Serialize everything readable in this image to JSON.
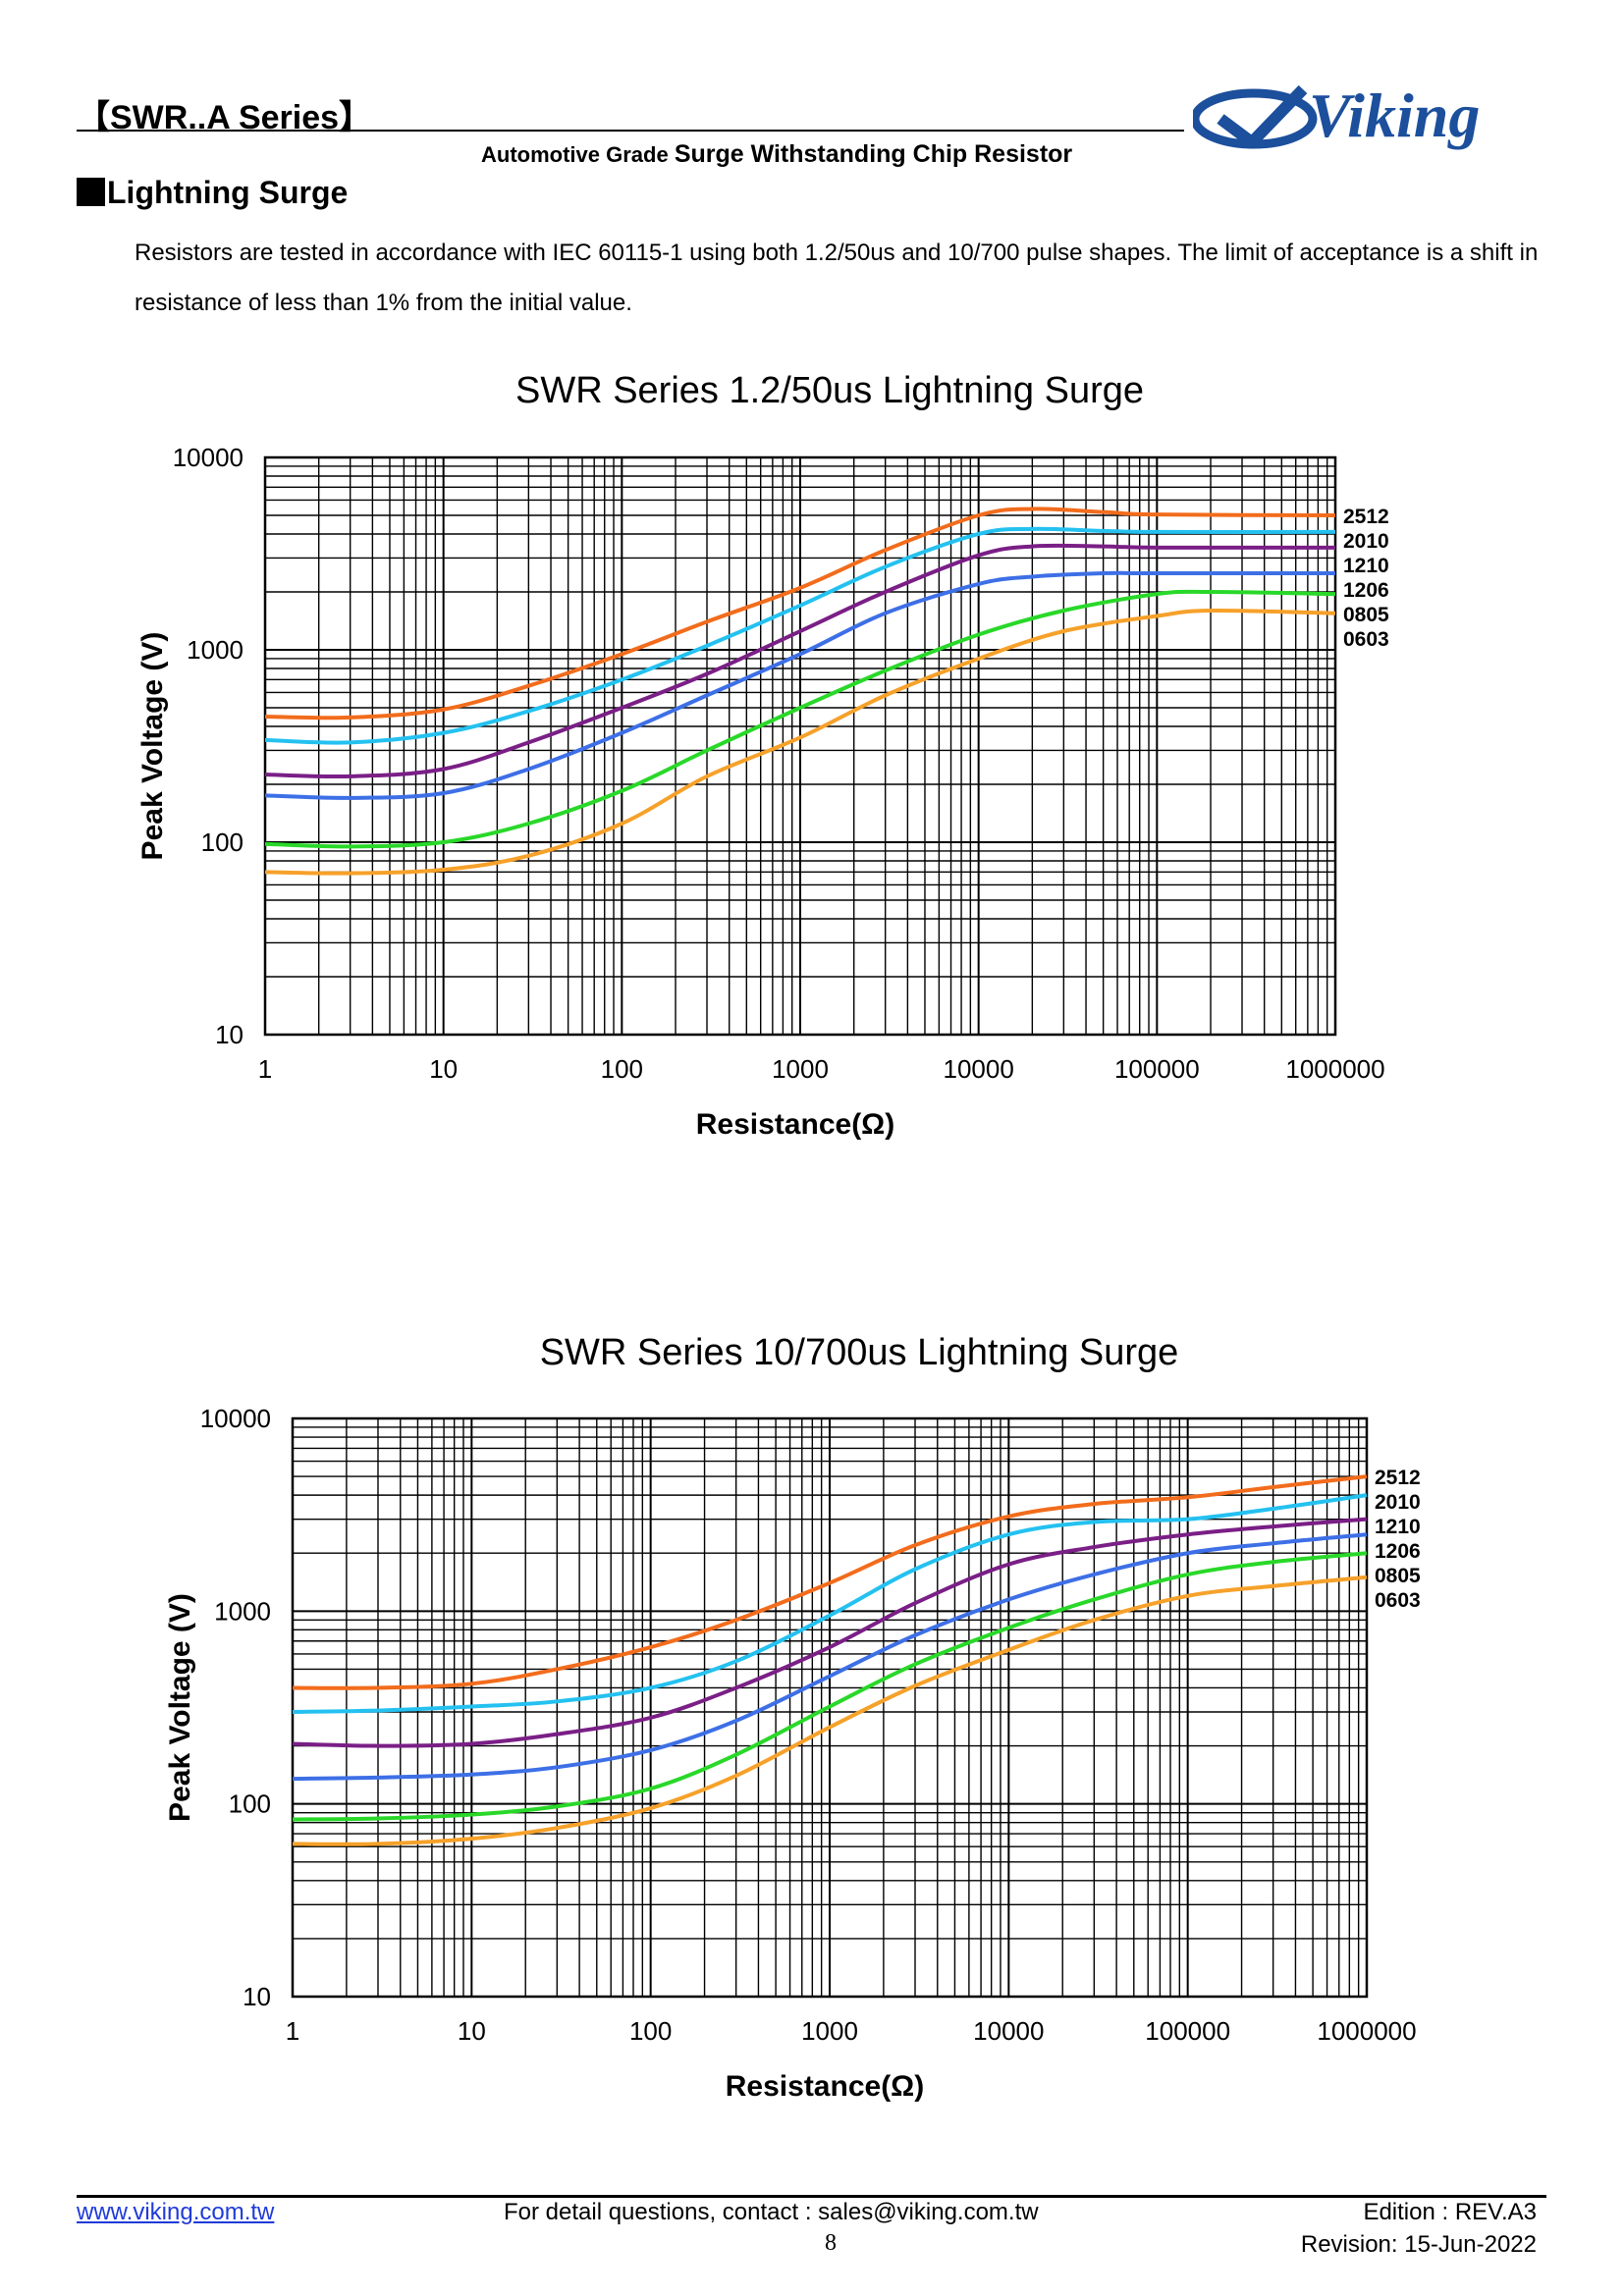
{
  "header": {
    "title": "【SWR..A Series】",
    "subtitle_small": "Automotive Grade ",
    "subtitle_large": "Surge Withstanding Chip Resistor",
    "brand": "Viking"
  },
  "section": {
    "title": "Lightning Surge",
    "paragraph": "Resistors are tested in accordance with IEC 60115-1 using both 1.2/50us and 10/700 pulse shapes. The limit of acceptance is a shift in resistance of less than 1% from the initial value."
  },
  "colors": {
    "2512": "#f26c1c",
    "2010": "#24c1f0",
    "1210": "#7a1f86",
    "1206": "#3d6fe6",
    "0805": "#29d829",
    "0603": "#f6a12a",
    "brand": "#1c4f9c"
  },
  "chart_data": [
    {
      "type": "line",
      "title": "SWR Series 1.2/50us Lightning Surge",
      "xlabel": "Resistance(Ω)",
      "ylabel": "Peak Voltage (V)",
      "xscale": "log",
      "yscale": "log",
      "xlim": [
        1,
        1000000
      ],
      "ylim": [
        10,
        10000
      ],
      "xticks": [
        "1",
        "10",
        "100",
        "1000",
        "10000",
        "100000",
        "1000000"
      ],
      "yticks": [
        "10",
        "100",
        "1000",
        "10000"
      ],
      "grid": true,
      "legend": "right",
      "series": [
        {
          "name": "2512",
          "x": [
            1,
            3,
            10,
            30,
            100,
            300,
            1000,
            3000,
            10000,
            20000,
            50000,
            100000,
            1000000
          ],
          "y": [
            450,
            445,
            490,
            650,
            950,
            1400,
            2100,
            3300,
            5000,
            5400,
            5200,
            5050,
            5000
          ]
        },
        {
          "name": "2010",
          "x": [
            1,
            3,
            10,
            30,
            100,
            300,
            1000,
            3000,
            10000,
            20000,
            50000,
            100000,
            1000000
          ],
          "y": [
            340,
            330,
            370,
            480,
            700,
            1050,
            1700,
            2700,
            4000,
            4250,
            4150,
            4100,
            4100
          ]
        },
        {
          "name": "1210",
          "x": [
            1,
            3,
            10,
            30,
            100,
            300,
            1000,
            3000,
            10000,
            20000,
            50000,
            100000,
            1000000
          ],
          "y": [
            225,
            220,
            240,
            330,
            500,
            750,
            1250,
            2000,
            3100,
            3450,
            3450,
            3400,
            3400
          ]
        },
        {
          "name": "1206",
          "x": [
            1,
            3,
            10,
            30,
            100,
            300,
            1000,
            3000,
            10000,
            20000,
            50000,
            100000,
            1000000
          ],
          "y": [
            175,
            170,
            180,
            240,
            370,
            580,
            950,
            1550,
            2200,
            2400,
            2500,
            2500,
            2500
          ]
        },
        {
          "name": "0805",
          "x": [
            1,
            3,
            10,
            30,
            100,
            300,
            1000,
            3000,
            10000,
            30000,
            100000,
            200000,
            1000000
          ],
          "y": [
            98,
            95,
            100,
            125,
            185,
            300,
            500,
            780,
            1200,
            1600,
            1950,
            2000,
            1950
          ]
        },
        {
          "name": "0603",
          "x": [
            1,
            3,
            10,
            30,
            100,
            300,
            1000,
            3000,
            10000,
            30000,
            100000,
            200000,
            1000000
          ],
          "y": [
            70,
            69,
            72,
            85,
            125,
            220,
            350,
            580,
            900,
            1250,
            1500,
            1600,
            1550
          ]
        }
      ]
    },
    {
      "type": "line",
      "title": "SWR Series 10/700us Lightning Surge",
      "xlabel": "Resistance(Ω)",
      "ylabel": "Peak Voltage (V)",
      "xscale": "log",
      "yscale": "log",
      "xlim": [
        1,
        1000000
      ],
      "ylim": [
        10,
        10000
      ],
      "xticks": [
        "1",
        "10",
        "100",
        "1000",
        "10000",
        "100000",
        "1000000"
      ],
      "yticks": [
        "10",
        "100",
        "1000",
        "10000"
      ],
      "grid": true,
      "legend": "right",
      "series": [
        {
          "name": "2512",
          "x": [
            1,
            3,
            10,
            30,
            100,
            300,
            1000,
            3000,
            10000,
            30000,
            100000,
            300000,
            1000000
          ],
          "y": [
            400,
            400,
            420,
            500,
            650,
            900,
            1400,
            2200,
            3100,
            3600,
            3900,
            4400,
            5000
          ]
        },
        {
          "name": "2010",
          "x": [
            1,
            3,
            10,
            30,
            100,
            300,
            1000,
            3000,
            10000,
            30000,
            100000,
            300000,
            1000000
          ],
          "y": [
            300,
            305,
            320,
            340,
            400,
            550,
            950,
            1650,
            2500,
            2900,
            3000,
            3400,
            4000
          ]
        },
        {
          "name": "1210",
          "x": [
            1,
            3,
            10,
            30,
            100,
            300,
            1000,
            3000,
            10000,
            30000,
            100000,
            300000,
            1000000
          ],
          "y": [
            205,
            200,
            205,
            230,
            280,
            400,
            650,
            1100,
            1750,
            2150,
            2500,
            2750,
            3000
          ]
        },
        {
          "name": "1206",
          "x": [
            1,
            3,
            10,
            30,
            100,
            300,
            1000,
            3000,
            10000,
            30000,
            100000,
            300000,
            1000000
          ],
          "y": [
            135,
            137,
            142,
            155,
            190,
            270,
            460,
            750,
            1150,
            1550,
            2000,
            2250,
            2500
          ]
        },
        {
          "name": "0805",
          "x": [
            1,
            3,
            10,
            30,
            100,
            300,
            1000,
            3000,
            10000,
            30000,
            100000,
            300000,
            1000000
          ],
          "y": [
            83,
            84,
            88,
            97,
            120,
            180,
            320,
            530,
            820,
            1150,
            1550,
            1800,
            2000
          ]
        },
        {
          "name": "0603",
          "x": [
            1,
            3,
            10,
            30,
            100,
            300,
            1000,
            3000,
            10000,
            30000,
            100000,
            300000,
            1000000
          ],
          "y": [
            62,
            62,
            66,
            75,
            95,
            140,
            250,
            410,
            630,
            900,
            1200,
            1350,
            1500
          ]
        }
      ]
    }
  ],
  "footer": {
    "website": "www.viking.com.tw",
    "contact": "For detail questions, contact : sales@viking.com.tw",
    "edition": "Edition : REV.A3",
    "page": "8",
    "revision": "Revision: 15-Jun-2022"
  }
}
